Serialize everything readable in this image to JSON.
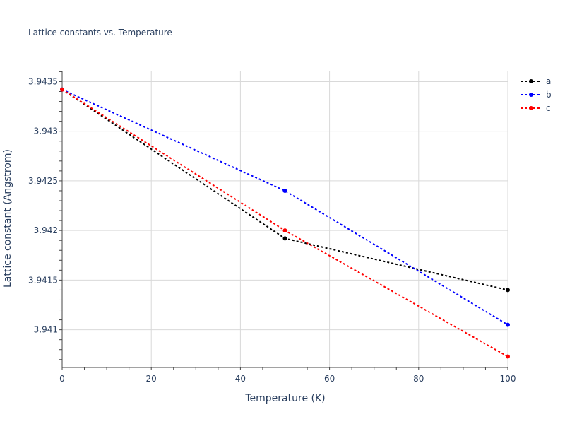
{
  "chart_data": {
    "type": "line",
    "title": "Lattice constants vs. Temperature",
    "xlabel": "Temperature (K)",
    "ylabel": "Lattice constant (Angstrom)",
    "xlim": [
      0,
      100
    ],
    "ylim": [
      3.94062,
      3.94361
    ],
    "x_ticks": [
      0,
      20,
      40,
      60,
      80,
      100
    ],
    "x_tick_labels": [
      "0",
      "20",
      "40",
      "60",
      "80",
      "100"
    ],
    "y_ticks": [
      3.941,
      3.9415,
      3.942,
      3.9425,
      3.943,
      3.9435
    ],
    "y_tick_labels": [
      "3.941",
      "3.9415",
      "3.942",
      "3.9425",
      "3.943",
      "3.9435"
    ],
    "grid": true,
    "legend_position": "top-right",
    "series": [
      {
        "name": "a",
        "color": "#000000",
        "x": [
          0,
          50,
          100
        ],
        "y": [
          3.94342,
          3.94192,
          3.9414
        ]
      },
      {
        "name": "b",
        "color": "#0000ff",
        "x": [
          0,
          50,
          100
        ],
        "y": [
          3.94342,
          3.9424,
          3.94105
        ]
      },
      {
        "name": "c",
        "color": "#ff0000",
        "x": [
          0,
          50,
          100
        ],
        "y": [
          3.94342,
          3.942,
          3.94073
        ]
      }
    ]
  }
}
